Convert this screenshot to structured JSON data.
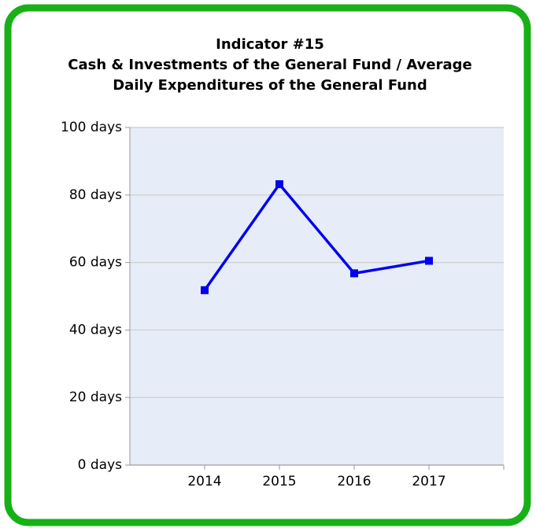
{
  "chart_data": {
    "type": "line",
    "title": [
      "Indicator #15",
      "Cash & Investments of the General Fund / Average",
      "Daily Expenditures of the General Fund"
    ],
    "categories": [
      "2014",
      "2015",
      "2016",
      "2017"
    ],
    "series": [
      {
        "name": "Indicator #15",
        "color": "#0000ee",
        "values": [
          51.8,
          83.2,
          56.8,
          60.5
        ]
      }
    ],
    "ylim": [
      0,
      100
    ],
    "yticks": [
      {
        "value": 0,
        "label": "0 days"
      },
      {
        "value": 20,
        "label": "20 days"
      },
      {
        "value": 40,
        "label": "40 days"
      },
      {
        "value": 60,
        "label": "60 days"
      },
      {
        "value": 80,
        "label": "80 days"
      },
      {
        "value": 100,
        "label": "100 days"
      }
    ],
    "grid": true
  }
}
